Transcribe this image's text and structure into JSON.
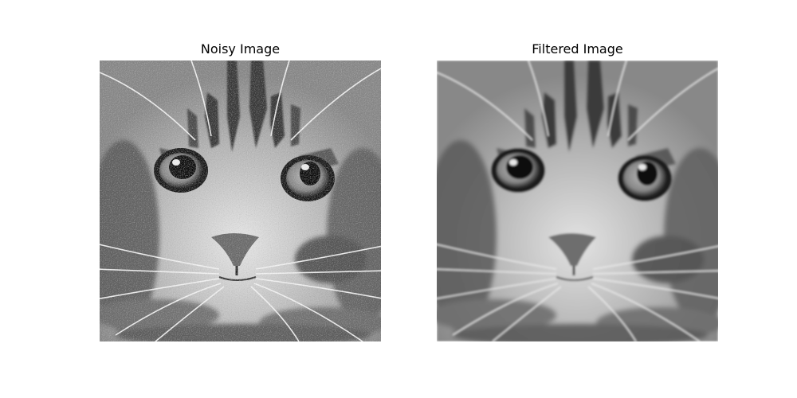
{
  "panels": {
    "left": {
      "title": "Noisy Image"
    },
    "right": {
      "title": "Filtered Image"
    }
  },
  "image": {
    "subject": "cat-face",
    "colormap": "grayscale"
  }
}
